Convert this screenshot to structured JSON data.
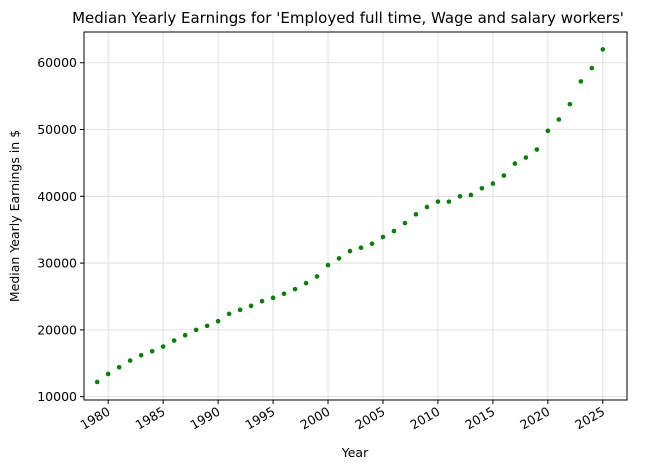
{
  "chart_data": {
    "type": "scatter",
    "title": "Median Yearly Earnings for 'Employed full time, Wage and salary workers'",
    "xlabel": "Year",
    "ylabel": "Median Yearly Earnings in $",
    "xlim": [
      1977.8,
      2027.2
    ],
    "ylim": [
      9500,
      64600
    ],
    "xticks": [
      1980,
      1985,
      1990,
      1995,
      2000,
      2005,
      2010,
      2015,
      2020,
      2025
    ],
    "yticks": [
      10000,
      20000,
      30000,
      40000,
      50000,
      60000
    ],
    "grid": true,
    "marker_color": "#008000",
    "series": [
      {
        "x": [
          1979,
          1980,
          1981,
          1982,
          1983,
          1984,
          1985,
          1986,
          1987,
          1988,
          1989,
          1990,
          1991,
          1992,
          1993,
          1994,
          1995,
          1996,
          1997,
          1998,
          1999,
          2000,
          2001,
          2002,
          2003,
          2004,
          2005,
          2006,
          2007,
          2008,
          2009,
          2010,
          2011,
          2012,
          2013,
          2014,
          2015,
          2016,
          2017,
          2018,
          2019,
          2020,
          2021,
          2022,
          2023,
          2024,
          2025
        ],
        "y": [
          12200,
          13400,
          14400,
          15400,
          16200,
          16800,
          17500,
          18400,
          19200,
          20000,
          20600,
          21300,
          22400,
          23000,
          23600,
          24300,
          24800,
          25400,
          26100,
          27000,
          28000,
          29700,
          30700,
          31800,
          32300,
          32900,
          33900,
          34800,
          36000,
          37300,
          38400,
          39200,
          39200,
          40000,
          40200,
          41200,
          41900,
          43100,
          44900,
          45800,
          47000,
          49800,
          51500,
          53800,
          57200,
          59200,
          62000
        ]
      }
    ]
  }
}
